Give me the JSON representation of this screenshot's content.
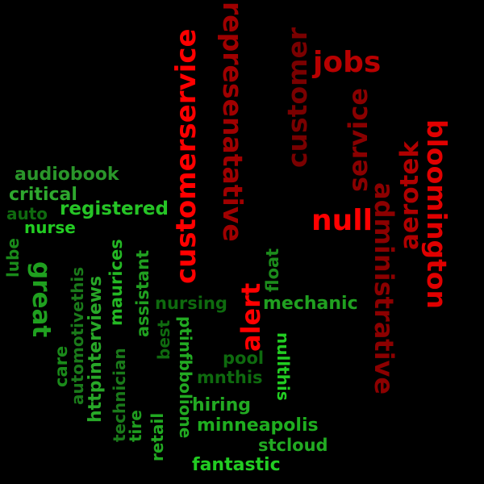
{
  "word_cloud": {
    "palette": {
      "bright_red": "#ff0000",
      "red": "#e00000",
      "dark_red": "#a50000",
      "maroon": "#8c0000",
      "bright_green": "#22cc22",
      "green": "#1fae1f",
      "mid_green": "#199019",
      "dark_green": "#0e6a0e"
    },
    "words": {
      "customerservice": "customerservice",
      "represenatative": "represenatative",
      "customer": "customer",
      "jobs": "jobs",
      "service": "service",
      "bloomington": "bloomington",
      "aerotek": "aerotek",
      "null": "null",
      "administrative": "administrative",
      "alert": "alert",
      "float": "float",
      "audiobook": "audiobook",
      "critical": "critical",
      "registered": "registered",
      "auto": "auto",
      "nurse": "nurse",
      "lube": "lube",
      "great": "great",
      "automotivethis": "automotivethis",
      "care": "care",
      "httpinterviews": "httpinterviews",
      "maurices": "maurices",
      "technician": "technician",
      "assistant": "assistant",
      "tire": "tire",
      "retail": "retail",
      "best": "best",
      "ptinfbbolione": "ptinfbbolione",
      "nursing": "nursing",
      "mechanic": "mechanic",
      "pool": "pool",
      "nullthis": "nullthis",
      "mnthis": "mnthis",
      "hiring": "hiring",
      "minneapolis": "minneapolis",
      "stcloud": "stcloud",
      "fantastic": "fantastic"
    }
  }
}
